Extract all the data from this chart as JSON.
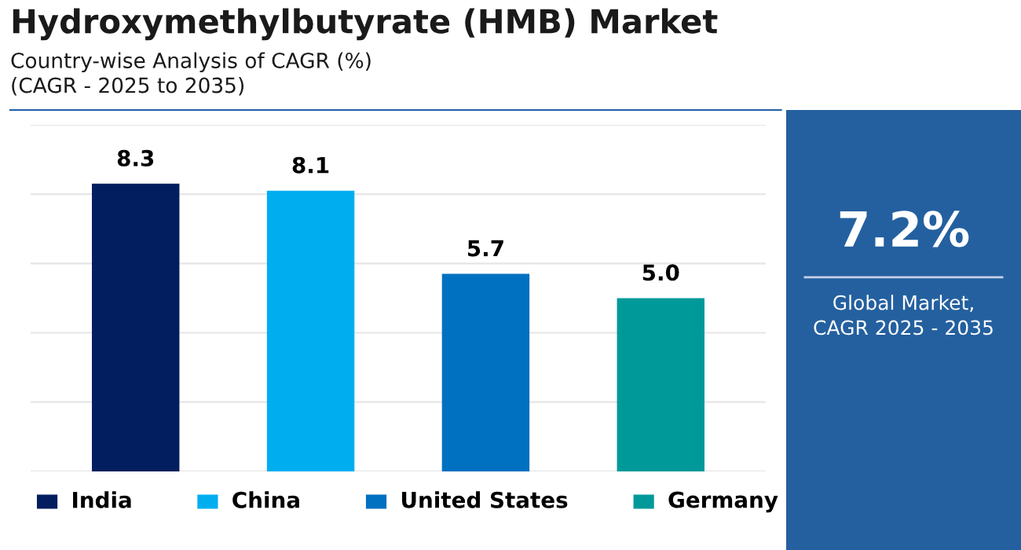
{
  "chart_data": {
    "type": "bar",
    "title": "Hydroxymethylbutyrate (HMB) Market",
    "subtitle": "Country-wise Analysis of CAGR (%)\n(CAGR - 2025 to 2035)",
    "categories": [
      "India",
      "China",
      "United States",
      "Germany"
    ],
    "values": [
      8.3,
      8.1,
      5.7,
      5.0
    ],
    "value_labels": [
      "8.3",
      "8.1",
      "5.7",
      "5.0"
    ],
    "colors": [
      "#021e5e",
      "#00aeef",
      "#0070c0",
      "#009999"
    ],
    "ylim": [
      0,
      10
    ],
    "yticks": [
      {
        "value": 0,
        "label": null
      },
      {
        "value": 2,
        "label": null
      },
      {
        "value": 4,
        "label": null
      },
      {
        "value": 6,
        "label": null
      },
      {
        "value": 8,
        "label": null
      },
      {
        "value": 10,
        "label": null
      }
    ],
    "grid": "y",
    "tick_labels": false,
    "annotations": [
      "7.2%",
      "Global Market,\nCAGR 2025 - 2035"
    ]
  }
}
